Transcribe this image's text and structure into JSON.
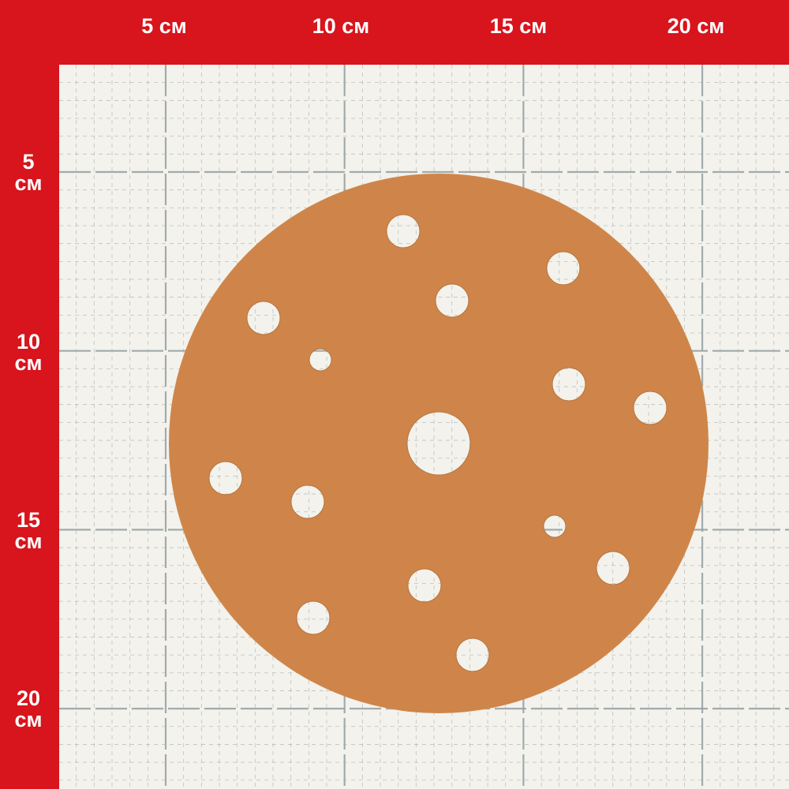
{
  "ruler": {
    "top_labels": [
      "5 см",
      "10 см",
      "15 см",
      "20 см"
    ],
    "left_labels": [
      {
        "num": "5",
        "unit": "см"
      },
      {
        "num": "10",
        "unit": "см"
      },
      {
        "num": "15",
        "unit": "см"
      },
      {
        "num": "20",
        "unit": "см"
      }
    ]
  },
  "colors": {
    "ruler": "#d8141c",
    "grid_bg": "#f3f2ec",
    "disc": "#cf8549",
    "grid_line": "#9aa3a6"
  },
  "product": {
    "type": "sanding disc",
    "diameter_cm": 15,
    "hole_count": 15
  }
}
